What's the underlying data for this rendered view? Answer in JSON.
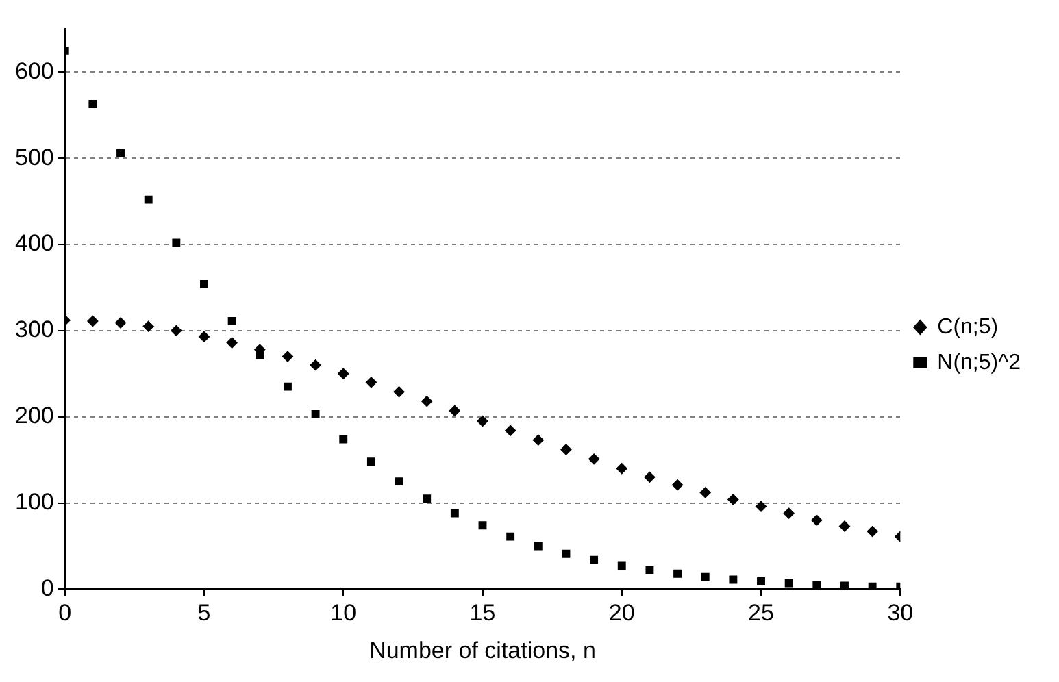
{
  "chart_data": {
    "type": "scatter",
    "xlabel": "Number of citations, n",
    "x": [
      0,
      1,
      2,
      3,
      4,
      5,
      6,
      7,
      8,
      9,
      10,
      11,
      12,
      13,
      14,
      15,
      16,
      17,
      18,
      19,
      20,
      21,
      22,
      23,
      24,
      25,
      26,
      27,
      28,
      29,
      30
    ],
    "series": [
      {
        "name": "C(n;5)",
        "color": "#000000",
        "marker": "diamond",
        "values": [
          312,
          311,
          309,
          305,
          300,
          293,
          286,
          278,
          270,
          260,
          250,
          240,
          229,
          218,
          207,
          195,
          184,
          173,
          162,
          151,
          140,
          130,
          121,
          112,
          104,
          96,
          88,
          80,
          73,
          67,
          61
        ]
      },
      {
        "name": "N(n;5)^2",
        "color": "#000000",
        "marker": "square",
        "values": [
          625,
          563,
          506,
          452,
          402,
          354,
          311,
          272,
          235,
          203,
          174,
          148,
          125,
          105,
          88,
          74,
          61,
          50,
          41,
          34,
          27,
          22,
          18,
          14,
          11,
          9,
          7,
          5,
          4,
          3,
          3
        ]
      }
    ],
    "xlim": [
      0,
      30
    ],
    "xticks": [
      0,
      5,
      10,
      15,
      20,
      25,
      30
    ],
    "ylim": [
      0,
      650
    ],
    "yticks": [
      0,
      100,
      200,
      300,
      400,
      500,
      600
    ],
    "grid": "y",
    "legend": "right"
  }
}
